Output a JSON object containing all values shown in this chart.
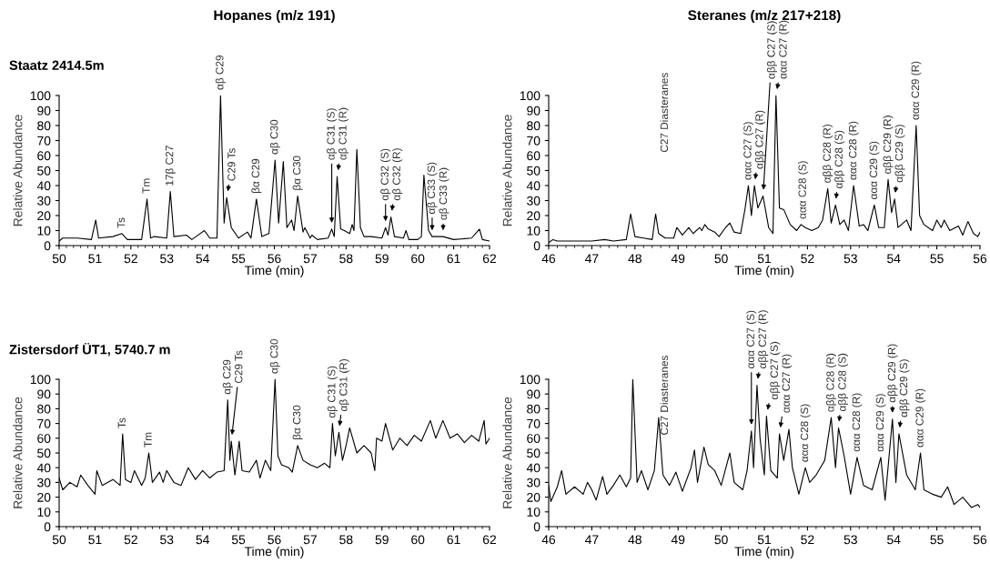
{
  "chart_data": [
    {
      "type": "line",
      "title": "Hopanes (m/z 191)",
      "subtitle": "Staatz 2414.5m",
      "xlabel": "Time (min)",
      "ylabel": "Relative Abundance",
      "x": [
        50.0,
        50.1,
        50.5,
        50.9,
        51.02,
        51.1,
        51.5,
        51.75,
        51.9,
        52.3,
        52.45,
        52.55,
        52.65,
        53.0,
        53.1,
        53.2,
        53.55,
        53.7,
        54.05,
        54.2,
        54.4,
        54.5,
        54.6,
        54.67,
        54.8,
        55.0,
        55.25,
        55.35,
        55.5,
        55.65,
        55.85,
        56.02,
        56.12,
        56.25,
        56.35,
        56.48,
        56.55,
        56.65,
        56.8,
        56.85,
        57.0,
        57.05,
        57.2,
        57.5,
        57.6,
        57.67,
        57.75,
        57.85,
        57.95,
        58.1,
        58.17,
        58.22,
        58.3,
        58.4,
        58.5,
        58.7,
        59.0,
        59.1,
        59.17,
        59.25,
        59.35,
        59.6,
        59.67,
        59.75,
        60.0,
        60.1,
        60.17,
        60.3,
        60.4,
        60.7,
        61.0,
        61.5,
        61.72,
        61.8,
        62.0
      ],
      "series": [
        {
          "color": "#000000",
          "values": [
            3,
            5,
            5,
            4,
            17,
            5,
            6,
            8,
            4,
            4,
            31,
            5,
            6,
            5,
            36,
            6,
            7,
            4,
            10,
            5,
            5,
            100,
            15,
            32,
            12,
            5,
            9,
            5,
            31,
            6,
            8,
            57,
            15,
            56,
            12,
            17,
            10,
            33,
            9,
            12,
            5,
            7,
            4,
            5,
            11,
            6,
            46,
            11,
            10,
            8,
            14,
            10,
            64,
            12,
            6,
            6,
            5,
            12,
            7,
            19,
            6,
            5,
            10,
            4,
            4,
            6,
            47,
            10,
            6,
            6,
            4,
            5,
            11,
            4,
            3
          ]
        }
      ],
      "xlim": [
        50,
        62
      ],
      "ylim": [
        0,
        100
      ],
      "xticks": [
        50,
        51,
        52,
        53,
        54,
        55,
        56,
        57,
        58,
        59,
        60,
        61,
        62
      ],
      "yticks": [
        0,
        10,
        20,
        30,
        40,
        50,
        60,
        70,
        80,
        90,
        100
      ],
      "annotations": [
        {
          "text": "Ts",
          "x": 51.75,
          "y": 8
        },
        {
          "text": "Tm",
          "x": 52.45,
          "y": 31
        },
        {
          "text": "17β C27",
          "x": 53.1,
          "y": 36
        },
        {
          "text": "αβ C29",
          "x": 54.5,
          "y": 100
        },
        {
          "text": "C29 Ts",
          "x": 54.67,
          "y": 32
        },
        {
          "text": "βα C29",
          "x": 55.5,
          "y": 31
        },
        {
          "text": "αβ C30",
          "x": 56.02,
          "y": 57
        },
        {
          "text": "βα C30",
          "x": 56.65,
          "y": 33
        },
        {
          "text": "αβ C31 (S)",
          "x": 57.6,
          "y": 11
        },
        {
          "text": "αβ C31 (R)",
          "x": 57.75,
          "y": 46
        },
        {
          "text": "αβ C32 (S)",
          "x": 59.1,
          "y": 12
        },
        {
          "text": "αβ C32 (R)",
          "x": 59.25,
          "y": 19
        },
        {
          "text": "αβ C33 (S)",
          "x": 60.4,
          "y": 6
        },
        {
          "text": "αβ C33 (R)",
          "x": 60.7,
          "y": 6
        }
      ]
    },
    {
      "type": "line",
      "title": "Steranes (m/z 217+218)",
      "xlabel": "Time (min)",
      "ylabel": "Relative Abundance",
      "x": [
        46.0,
        46.1,
        46.2,
        46.5,
        47.0,
        47.3,
        47.5,
        47.8,
        47.9,
        48.0,
        48.2,
        48.4,
        48.48,
        48.55,
        48.7,
        48.9,
        48.97,
        49.1,
        49.25,
        49.35,
        49.5,
        49.55,
        49.62,
        49.7,
        49.85,
        49.95,
        50.1,
        50.2,
        50.3,
        50.45,
        50.55,
        50.63,
        50.7,
        50.77,
        50.85,
        50.97,
        51.1,
        51.2,
        51.27,
        51.35,
        51.45,
        51.6,
        51.75,
        51.85,
        51.95,
        52.1,
        52.25,
        52.35,
        52.47,
        52.55,
        52.65,
        52.75,
        52.85,
        52.95,
        53.07,
        53.2,
        53.3,
        53.4,
        53.55,
        53.65,
        53.78,
        53.87,
        53.95,
        54.02,
        54.1,
        54.3,
        54.4,
        54.52,
        54.6,
        54.7,
        54.9,
        55.0,
        55.1,
        55.17,
        55.3,
        55.5,
        55.6,
        55.72,
        55.85,
        55.95,
        56.0
      ],
      "series": [
        {
          "color": "#000000",
          "values": [
            2,
            4,
            3,
            3,
            3,
            4,
            3,
            4,
            21,
            6,
            5,
            4,
            21,
            8,
            5,
            5,
            12,
            7,
            12,
            8,
            12,
            10,
            14,
            11,
            9,
            6,
            12,
            15,
            9,
            8,
            24,
            40,
            20,
            40,
            25,
            33,
            12,
            8,
            100,
            25,
            24,
            14,
            10,
            14,
            12,
            10,
            12,
            17,
            38,
            15,
            27,
            14,
            17,
            10,
            40,
            13,
            14,
            10,
            27,
            12,
            12,
            44,
            22,
            31,
            12,
            17,
            10,
            80,
            20,
            14,
            10,
            17,
            12,
            17,
            10,
            13,
            7,
            16,
            8,
            6,
            9
          ]
        }
      ],
      "xlim": [
        46,
        56
      ],
      "ylim": [
        0,
        100
      ],
      "xticks": [
        46,
        47,
        48,
        49,
        50,
        51,
        52,
        53,
        54,
        55,
        56
      ],
      "yticks": [
        0,
        10,
        20,
        30,
        40,
        50,
        60,
        70,
        80,
        90,
        100
      ],
      "annotations": [
        "C27 Diasteranes",
        {
          "text": "ααα C27 (S)",
          "x": 50.63,
          "y": 40
        },
        {
          "text": "αββ C27 (R)",
          "x": 50.77,
          "y": 40
        },
        {
          "text": "αββ C27 (S)",
          "x": 50.97,
          "y": 33
        },
        {
          "text": "ααα C27 (R)",
          "x": 51.27,
          "y": 100
        },
        {
          "text": "ααα C28 (S)",
          "x": 51.9,
          "y": 13
        },
        {
          "text": "αββ C28 (R)",
          "x": 52.47,
          "y": 38
        },
        {
          "text": "αββ C28 (S)",
          "x": 52.65,
          "y": 27
        },
        {
          "text": "ααα C28 (R)",
          "x": 53.07,
          "y": 40
        },
        {
          "text": "ααα C29 (S)",
          "x": 53.55,
          "y": 27
        },
        {
          "text": "αββ C29 (R)",
          "x": 53.87,
          "y": 44
        },
        {
          "text": "αββ C29 (S)",
          "x": 54.02,
          "y": 31
        },
        {
          "text": "ααα C29 (R)",
          "x": 54.52,
          "y": 80
        }
      ]
    },
    {
      "type": "line",
      "subtitle": "Zistersdorf ÜT1, 5740.7 m",
      "xlabel": "Time (min)",
      "ylabel": "Relative Abundance",
      "x": [
        50.0,
        50.1,
        50.3,
        50.5,
        50.6,
        50.8,
        51.0,
        51.05,
        51.2,
        51.5,
        51.7,
        51.77,
        51.85,
        52.0,
        52.1,
        52.3,
        52.4,
        52.5,
        52.6,
        52.8,
        52.9,
        53.0,
        53.2,
        53.4,
        53.6,
        53.8,
        54.0,
        54.2,
        54.4,
        54.6,
        54.7,
        54.76,
        54.8,
        54.9,
        55.02,
        55.1,
        55.3,
        55.5,
        55.6,
        55.75,
        55.9,
        56.02,
        56.1,
        56.2,
        56.4,
        56.5,
        56.65,
        56.8,
        57.0,
        57.2,
        57.4,
        57.55,
        57.62,
        57.7,
        57.8,
        57.9,
        58.0,
        58.1,
        58.3,
        58.5,
        58.7,
        58.8,
        58.85,
        59.0,
        59.1,
        59.3,
        59.5,
        59.7,
        59.9,
        60.1,
        60.35,
        60.5,
        60.7,
        60.9,
        61.1,
        61.3,
        61.5,
        61.7,
        61.85,
        61.9,
        62.0
      ],
      "series": [
        {
          "color": "#000000",
          "values": [
            33,
            25,
            30,
            27,
            35,
            28,
            22,
            38,
            28,
            32,
            28,
            63,
            32,
            30,
            38,
            28,
            33,
            50,
            30,
            37,
            30,
            38,
            30,
            28,
            40,
            32,
            38,
            33,
            37,
            38,
            86,
            45,
            58,
            35,
            58,
            38,
            37,
            45,
            33,
            45,
            38,
            100,
            48,
            42,
            40,
            37,
            55,
            45,
            42,
            40,
            43,
            40,
            70,
            48,
            64,
            45,
            55,
            67,
            50,
            55,
            50,
            38,
            60,
            58,
            70,
            52,
            60,
            55,
            62,
            58,
            72,
            60,
            72,
            60,
            63,
            57,
            62,
            58,
            72,
            56,
            60
          ]
        }
      ],
      "xlim": [
        50,
        62
      ],
      "ylim": [
        0,
        100
      ],
      "xticks": [
        50,
        51,
        52,
        53,
        54,
        55,
        56,
        57,
        58,
        59,
        60,
        61,
        62
      ],
      "yticks": [
        0,
        10,
        20,
        30,
        40,
        50,
        60,
        70,
        80,
        90,
        100
      ],
      "annotations": [
        {
          "text": "Ts",
          "x": 51.77,
          "y": 63
        },
        {
          "text": "Tm",
          "x": 52.5,
          "y": 50
        },
        {
          "text": "αβ C29",
          "x": 54.7,
          "y": 86
        },
        {
          "text": "C29 Ts",
          "x": 54.8,
          "y": 58
        },
        {
          "text": "αβ C30",
          "x": 56.02,
          "y": 100
        },
        {
          "text": "βα C30",
          "x": 56.65,
          "y": 55
        },
        {
          "text": "αβ C31 (S)",
          "x": 57.62,
          "y": 70
        },
        {
          "text": "αβ C31 (R)",
          "x": 57.8,
          "y": 64
        }
      ]
    },
    {
      "type": "line",
      "xlabel": "Time (min)",
      "ylabel": "Relative Abundance",
      "x": [
        46.0,
        46.05,
        46.2,
        46.3,
        46.4,
        46.6,
        46.8,
        46.9,
        47.0,
        47.1,
        47.25,
        47.35,
        47.5,
        47.65,
        47.8,
        47.9,
        47.95,
        48.05,
        48.15,
        48.3,
        48.45,
        48.55,
        48.65,
        48.8,
        48.95,
        49.1,
        49.3,
        49.38,
        49.45,
        49.6,
        49.7,
        49.85,
        50.0,
        50.2,
        50.3,
        50.5,
        50.6,
        50.7,
        50.75,
        50.83,
        50.9,
        51.0,
        51.05,
        51.15,
        51.3,
        51.35,
        51.45,
        51.57,
        51.65,
        51.8,
        51.95,
        52.05,
        52.2,
        52.4,
        52.55,
        52.65,
        52.72,
        52.85,
        53.0,
        53.15,
        53.3,
        53.5,
        53.7,
        53.8,
        53.97,
        54.05,
        54.12,
        54.3,
        54.5,
        54.62,
        54.7,
        54.9,
        55.1,
        55.25,
        55.4,
        55.6,
        55.8,
        55.95,
        56.0
      ],
      "series": [
        {
          "color": "#000000",
          "values": [
            28,
            17,
            27,
            38,
            22,
            27,
            22,
            30,
            25,
            18,
            34,
            22,
            28,
            35,
            27,
            33,
            100,
            30,
            38,
            25,
            38,
            74,
            35,
            28,
            37,
            24,
            40,
            52,
            30,
            54,
            42,
            38,
            28,
            50,
            30,
            25,
            38,
            65,
            40,
            96,
            60,
            35,
            75,
            38,
            33,
            63,
            45,
            66,
            40,
            22,
            40,
            30,
            35,
            45,
            74,
            40,
            67,
            48,
            22,
            47,
            28,
            25,
            47,
            18,
            73,
            30,
            63,
            35,
            25,
            50,
            25,
            22,
            20,
            27,
            15,
            20,
            13,
            15,
            13
          ]
        }
      ],
      "xlim": [
        46,
        56
      ],
      "ylim": [
        0,
        100
      ],
      "xticks": [
        46,
        47,
        48,
        49,
        50,
        51,
        52,
        53,
        54,
        55,
        56
      ],
      "yticks": [
        0,
        10,
        20,
        30,
        40,
        50,
        60,
        70,
        80,
        90,
        100
      ],
      "annotations": [
        "C27 Diasteranes",
        {
          "text": "ααα C27 (S)",
          "x": 50.7,
          "y": 65
        },
        {
          "text": "αββ C27 (R)",
          "x": 50.83,
          "y": 96
        },
        {
          "text": "αββ C27 (S)",
          "x": 51.05,
          "y": 75
        },
        {
          "text": "ααα C27 (R)",
          "x": 51.35,
          "y": 63
        },
        {
          "text": "ααα C28 (S)",
          "x": 51.95,
          "y": 40
        },
        {
          "text": "αββ C28 (R)",
          "x": 52.55,
          "y": 74
        },
        {
          "text": "αββ C28 (S)",
          "x": 52.72,
          "y": 67
        },
        {
          "text": "ααα C28 (R)",
          "x": 53.15,
          "y": 47
        },
        {
          "text": "ααα C29 (S)",
          "x": 53.7,
          "y": 47
        },
        {
          "text": "αββ C29 (R)",
          "x": 53.97,
          "y": 73
        },
        {
          "text": "αββ C29 (S)",
          "x": 54.12,
          "y": 63
        },
        {
          "text": "ααα C29 (R)",
          "x": 54.62,
          "y": 50
        }
      ]
    }
  ]
}
